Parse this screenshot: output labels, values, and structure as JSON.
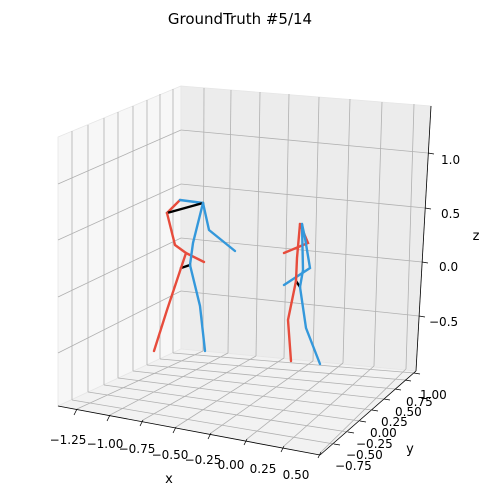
{
  "chart_data": {
    "type": "line",
    "title": "GroundTruth #5/14",
    "xlabel": "x",
    "ylabel": "y",
    "zlabel": "z",
    "xticks": [
      "−1.25",
      "−1.00",
      "−0.75",
      "−0.50",
      "−0.25",
      "0.00",
      "0.25",
      "0.50"
    ],
    "yticks": [
      "−0.75",
      "−0.50",
      "−0.25",
      "0.00",
      "0.25",
      "0.50",
      "0.75",
      "1.00"
    ],
    "zticks": [
      "−0.5",
      "0.0",
      "0.5",
      "1.0"
    ],
    "grid": true,
    "colors": {
      "left": "#3498db",
      "right": "#e74c3c",
      "center": "#000000"
    },
    "skeletons": [
      {
        "segments": [
          {
            "side": "right",
            "points": [
              [
                167,
                213
              ],
              [
                180,
                200
              ]
            ]
          },
          {
            "side": "left",
            "points": [
              [
                180,
                200
              ],
              [
                203,
                203
              ]
            ]
          },
          {
            "side": "center",
            "points": [
              [
                167,
                213
              ],
              [
                203,
                203
              ]
            ]
          },
          {
            "side": "right",
            "points": [
              [
                167,
                213
              ],
              [
                175,
                245
              ],
              [
                186,
                253
              ]
            ]
          },
          {
            "side": "left",
            "points": [
              [
                203,
                203
              ],
              [
                209,
                230
              ],
              [
                235,
                251
              ]
            ]
          },
          {
            "side": "right",
            "points": [
              [
                186,
                253
              ],
              [
                204,
                262
              ]
            ]
          },
          {
            "side": "left",
            "points": [
              [
                203,
                203
              ],
              [
                193,
                243
              ],
              [
                190,
                265
              ]
            ]
          },
          {
            "side": "center",
            "points": [
              [
                181,
                268
              ],
              [
                190,
                265
              ]
            ]
          },
          {
            "side": "right",
            "points": [
              [
                181,
                268
              ],
              [
                167,
                310
              ],
              [
                154,
                351
              ]
            ]
          },
          {
            "side": "left",
            "points": [
              [
                190,
                265
              ],
              [
                200,
                306
              ],
              [
                205,
                351
              ]
            ]
          },
          {
            "side": "right",
            "points": [
              [
                186,
                253
              ],
              [
                181,
                268
              ]
            ]
          }
        ]
      },
      {
        "segments": [
          {
            "side": "right",
            "points": [
              [
                300,
                224
              ],
              [
                308,
                243
              ],
              [
                284,
                253
              ]
            ]
          },
          {
            "side": "left",
            "points": [
              [
                302,
                224
              ],
              [
                305,
                238
              ],
              [
                310,
                268
              ],
              [
                284,
                285
              ]
            ]
          },
          {
            "side": "center",
            "points": [
              [
                296,
                281
              ],
              [
                300,
                287
              ]
            ]
          },
          {
            "side": "right",
            "points": [
              [
                300,
                224
              ],
              [
                297,
                258
              ],
              [
                296,
                281
              ],
              [
                288,
                320
              ],
              [
                291,
                361
              ]
            ]
          },
          {
            "side": "left",
            "points": [
              [
                302,
                224
              ],
              [
                303,
                270
              ],
              [
                300,
                287
              ],
              [
                306,
                328
              ],
              [
                320,
                364
              ]
            ]
          }
        ]
      }
    ]
  }
}
